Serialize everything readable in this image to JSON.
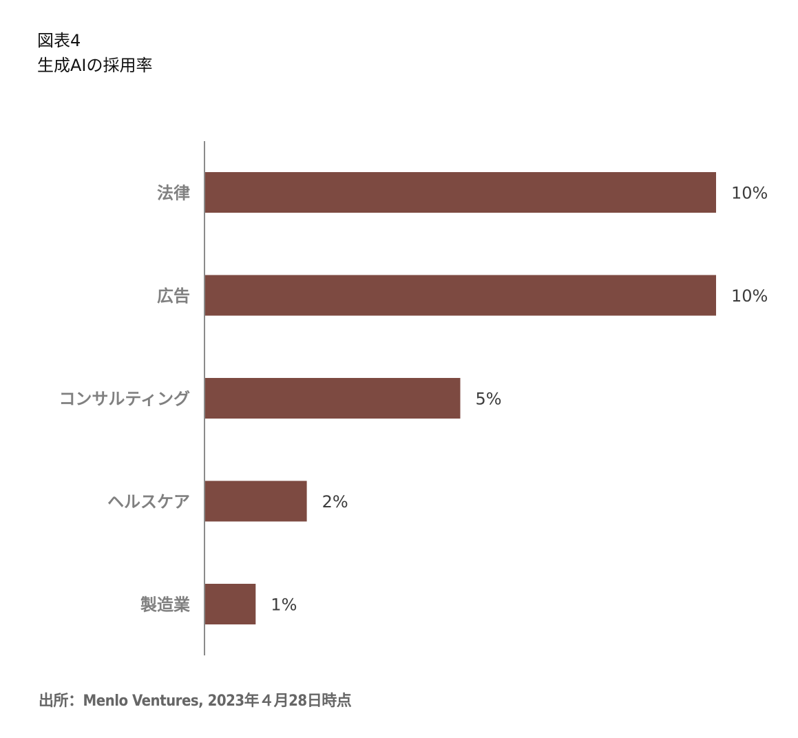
{
  "header": {
    "figure_number": "図表4",
    "title": "生成AIの採用率"
  },
  "chart_data": {
    "type": "bar",
    "orientation": "horizontal",
    "categories": [
      "法律",
      "広告",
      "コンサルティング",
      "ヘルスケア",
      "製造業"
    ],
    "values": [
      10,
      10,
      5,
      2,
      1
    ],
    "value_labels": [
      "10%",
      "10%",
      "5%",
      "2%",
      "1%"
    ],
    "unit": "%",
    "xlim": [
      0,
      10
    ],
    "bar_color": "#7d4a41",
    "axis_color": "#8a8a8a",
    "grid": false,
    "legend": false
  },
  "footer": {
    "source": "出所：Menlo Ventures, 2023年４月28日時点"
  }
}
